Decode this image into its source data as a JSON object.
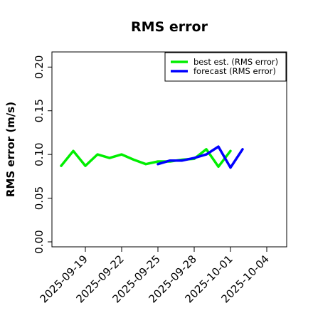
{
  "chart_data": {
    "type": "line",
    "title": "RMS error",
    "xlabel": "",
    "ylabel": "RMS error (m/s)",
    "ylim": [
      0,
      0.21
    ],
    "yticks": [
      "0.00",
      "0.05",
      "0.10",
      "0.15",
      "0.20"
    ],
    "ytick_values": [
      0,
      0.05,
      0.1,
      0.15,
      0.2
    ],
    "xlim": [
      "2025-09-16",
      "2025-10-05"
    ],
    "xticks": [
      {
        "date": "2025-09-19",
        "label": "2025-09-19",
        "color": "#000000"
      },
      {
        "date": "2025-09-22",
        "label": "2025-09-22",
        "color": "#000000"
      },
      {
        "date": "2025-09-25",
        "label": "2025-09-25",
        "color": "#228B22"
      },
      {
        "date": "2025-09-28",
        "label": "2025-09-28",
        "color": "#000000"
      },
      {
        "date": "2025-10-01",
        "label": "2025-10-01",
        "color": "#000000"
      },
      {
        "date": "2025-10-04",
        "label": "2025-10-04",
        "color": "#000000"
      }
    ],
    "grid": false,
    "legend_position": "top-right",
    "series": [
      {
        "name": "best est. (RMS error)",
        "color": "#00ee00",
        "points": [
          [
            "2025-09-17",
            0.087
          ],
          [
            "2025-09-18",
            0.104
          ],
          [
            "2025-09-19",
            0.087
          ],
          [
            "2025-09-20",
            0.1
          ],
          [
            "2025-09-21",
            0.096
          ],
          [
            "2025-09-22",
            0.1
          ],
          [
            "2025-09-23",
            0.094
          ],
          [
            "2025-09-24",
            0.089
          ],
          [
            "2025-09-25",
            0.092
          ],
          [
            "2025-09-26",
            0.092
          ],
          [
            "2025-09-27",
            0.094
          ],
          [
            "2025-09-28",
            0.095
          ],
          [
            "2025-09-29",
            0.106
          ],
          [
            "2025-09-30",
            0.086
          ],
          [
            "2025-10-01",
            0.104
          ]
        ]
      },
      {
        "name": "forecast (RMS error)",
        "color": "#0000ff",
        "points": [
          [
            "2025-09-25",
            0.089
          ],
          [
            "2025-09-26",
            0.093
          ],
          [
            "2025-09-27",
            0.093
          ],
          [
            "2025-09-28",
            0.096
          ],
          [
            "2025-09-29",
            0.1
          ],
          [
            "2025-09-30",
            0.109
          ],
          [
            "2025-10-01",
            0.085
          ],
          [
            "2025-10-02",
            0.106
          ]
        ]
      }
    ]
  }
}
